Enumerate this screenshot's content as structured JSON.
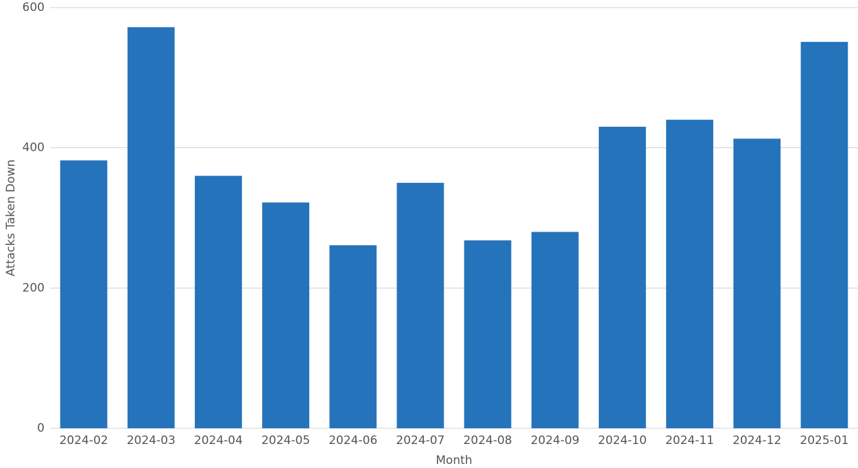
{
  "chart_data": {
    "type": "bar",
    "x_label": "Month",
    "y_label": "Attacks Taken Down",
    "categories": [
      "2024-02",
      "2024-03",
      "2024-04",
      "2024-05",
      "2024-06",
      "2024-07",
      "2024-08",
      "2024-09",
      "2024-10",
      "2024-11",
      "2024-12",
      "2025-01"
    ],
    "values": [
      382,
      572,
      360,
      322,
      261,
      350,
      268,
      280,
      430,
      440,
      413,
      551
    ],
    "color": "#2573ba",
    "ylim": [
      0,
      600
    ],
    "yticks": [
      0,
      200,
      400,
      600
    ],
    "grid": true
  }
}
